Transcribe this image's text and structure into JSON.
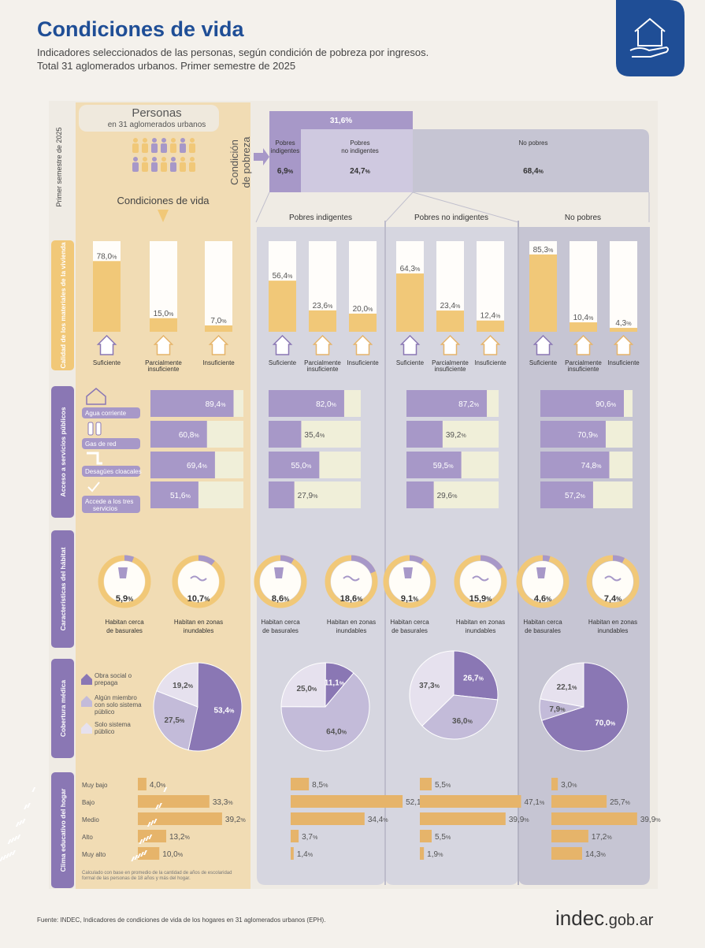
{
  "header": {
    "title": "Condiciones de vida",
    "subtitle_1": "Indicadores seleccionados de las personas, según condición de pobreza por ingresos.",
    "subtitle_2": "Total 31 aglomerados urbanos. Primer semestre de 2025"
  },
  "intro": {
    "persons_title": "Personas",
    "persons_sub": "en 31 aglomerados urbanos",
    "semester_label": "Primer semestre de 2025",
    "conditions_label": "Condiciones de vida",
    "condition_label_1": "Condición",
    "condition_label_2": "de pobreza",
    "poverty_total": "31,6%",
    "groups": [
      {
        "label_1": "Pobres",
        "label_2": "indigentes",
        "value": "6,9",
        "unit": "%"
      },
      {
        "label_1": "Pobres",
        "label_2": "no indigentes",
        "value": "24,7",
        "unit": "%"
      },
      {
        "label_1": "No pobres",
        "label_2": "",
        "value": "68,4",
        "unit": "%"
      }
    ]
  },
  "columns": {
    "total": "",
    "indigent": "Pobres indigentes",
    "nonindigent": "Pobres no indigentes",
    "nonpoor": "No pobres"
  },
  "sections": {
    "vivienda": "Calidad de los materiales de la vivienda",
    "servicios": "Acceso a servicios públicos",
    "habitat": "Características del hábitat",
    "cobertura": "Cobertura médica",
    "clima": "Clima educativo del hogar"
  },
  "vivienda_labels": [
    "Suficiente",
    "Parcialmente",
    "insuficiente",
    "Insuficiente"
  ],
  "servicios_labels": [
    "Agua corriente",
    "Gas de red",
    "Desagües cloacales",
    "Accede a los tres",
    "servicios"
  ],
  "habitat_labels": {
    "basural_1": "Habitan cerca",
    "basural_2": "de basurales",
    "inund_1": "Habitan en zonas",
    "inund_2": "inundables"
  },
  "cobertura_labels": [
    "Obra social o prepaga",
    "Algún miembro con solo sistema público",
    "Solo sistema público"
  ],
  "clima_labels": [
    "Muy bajo",
    "Bajo",
    "Medio",
    "Alto",
    "Muy alto"
  ],
  "clima_note": "Calculado con base en promedio de la cantidad de años de escolaridad formal de las personas de 18 años y más del hogar.",
  "chart_data": {
    "vivienda": {
      "type": "bar",
      "categories": [
        "Suficiente",
        "Parcialmente insuficiente",
        "Insuficiente"
      ],
      "series": [
        {
          "group": "total",
          "values": [
            78.0,
            15.0,
            7.0
          ],
          "labels": [
            "78,0%",
            "15,0%",
            "7,0%"
          ]
        },
        {
          "group": "indigent",
          "values": [
            56.4,
            23.6,
            20.0
          ],
          "labels": [
            "56,4%",
            "23,6%",
            "20,0%"
          ]
        },
        {
          "group": "nonindigent",
          "values": [
            64.3,
            23.4,
            12.4
          ],
          "labels": [
            "64,3%",
            "23,4%",
            "12,4%"
          ]
        },
        {
          "group": "nonpoor",
          "values": [
            85.3,
            10.4,
            4.3
          ],
          "labels": [
            "85,3%",
            "10,4%",
            "4,3%"
          ]
        }
      ]
    },
    "servicios": {
      "type": "bar",
      "categories": [
        "Agua corriente",
        "Gas de red",
        "Desagües cloacales",
        "Accede a los tres servicios"
      ],
      "series": [
        {
          "group": "total",
          "values": [
            89.4,
            60.8,
            69.4,
            51.6
          ],
          "labels": [
            "89,4%",
            "60,8%",
            "69,4%",
            "51,6%"
          ]
        },
        {
          "group": "indigent",
          "values": [
            82.0,
            35.4,
            55.0,
            27.9
          ],
          "labels": [
            "82,0%",
            "35,4%",
            "55,0%",
            "27,9%"
          ]
        },
        {
          "group": "nonindigent",
          "values": [
            87.2,
            39.2,
            59.5,
            29.6
          ],
          "labels": [
            "87,2%",
            "39,2%",
            "59,5%",
            "29,6%"
          ]
        },
        {
          "group": "nonpoor",
          "values": [
            90.6,
            70.9,
            74.8,
            57.2
          ],
          "labels": [
            "90,6%",
            "70,9%",
            "74,8%",
            "57,2%"
          ]
        }
      ]
    },
    "habitat": {
      "type": "pie",
      "categories": [
        "Habitan cerca de basurales",
        "Habitan en zonas inundables"
      ],
      "series": [
        {
          "group": "total",
          "values": [
            5.9,
            10.7
          ],
          "labels": [
            "5,9%",
            "10,7%"
          ]
        },
        {
          "group": "indigent",
          "values": [
            8.6,
            18.6
          ],
          "labels": [
            "8,6%",
            "18,6%"
          ]
        },
        {
          "group": "nonindigent",
          "values": [
            9.1,
            15.9
          ],
          "labels": [
            "9,1%",
            "15,9%"
          ]
        },
        {
          "group": "nonpoor",
          "values": [
            4.6,
            7.4
          ],
          "labels": [
            "4,6%",
            "7,4%"
          ]
        }
      ]
    },
    "cobertura": {
      "type": "pie",
      "categories": [
        "Obra social o prepaga",
        "Algún miembro con solo sistema público",
        "Solo sistema público"
      ],
      "series": [
        {
          "group": "total",
          "values": [
            53.4,
            27.5,
            19.2
          ],
          "labels": [
            "53,4%",
            "27,5%",
            "19,2%"
          ]
        },
        {
          "group": "indigent",
          "values": [
            11.1,
            64.0,
            25.0
          ],
          "labels": [
            "11,1%",
            "64,0%",
            "25,0%"
          ]
        },
        {
          "group": "nonindigent",
          "values": [
            26.7,
            36.0,
            37.3
          ],
          "labels": [
            "26,7%",
            "36,0%",
            "37,3%"
          ]
        },
        {
          "group": "nonpoor",
          "values": [
            70.0,
            7.9,
            22.1
          ],
          "labels": [
            "70,0%",
            "7,9%",
            "22,1%"
          ]
        }
      ]
    },
    "clima": {
      "type": "bar",
      "categories": [
        "Muy bajo",
        "Bajo",
        "Medio",
        "Alto",
        "Muy alto"
      ],
      "series": [
        {
          "group": "total",
          "values": [
            4.0,
            33.3,
            39.2,
            13.2,
            10.0
          ],
          "labels": [
            "4,0%",
            "33,3%",
            "39,2%",
            "13,2%",
            "10,0%"
          ]
        },
        {
          "group": "indigent",
          "values": [
            8.5,
            52.1,
            34.4,
            3.7,
            1.4
          ],
          "labels": [
            "8,5%",
            "52,1%",
            "34,4%",
            "3,7%",
            "1,4%"
          ]
        },
        {
          "group": "nonindigent",
          "values": [
            5.5,
            47.1,
            39.9,
            5.5,
            1.9
          ],
          "labels": [
            "5,5%",
            "47,1%",
            "39,9%",
            "5,5%",
            "1,9%"
          ]
        },
        {
          "group": "nonpoor",
          "values": [
            3.0,
            25.7,
            39.9,
            17.2,
            14.3
          ],
          "labels": [
            "3,0%",
            "25,7%",
            "39,9%",
            "17,2%",
            "14,3%"
          ]
        }
      ]
    }
  },
  "colors": {
    "bg": "#f4f1ec",
    "tan": "#f1dcb4",
    "gold": "#f1c878",
    "purple": "#a798c8",
    "purple_dark": "#8a77b4",
    "lavender": "#cfc9e0",
    "grey_col": "#d6d6e0",
    "grey_col_dark": "#c6c5d3",
    "navy": "#1f4e96",
    "clima_bar": "#e6b46a",
    "cream_track": "#f0efd9"
  },
  "icons": {
    "logo": "house-in-hand-icon",
    "house": "house-icon",
    "water": "faucet-icon",
    "gas": "gas-cylinder-icon",
    "sewer": "pipe-icon",
    "check": "check-icon",
    "trash": "trash-icon",
    "flood": "flood-wave-icon",
    "people": "person-icon",
    "books": "book-stack-icon"
  },
  "footer": {
    "source": "Fuente: INDEC, Indicadores de condiciones de vida de los hogares en 31 aglomerados urbanos (EPH).",
    "brand": "indec",
    "brand_suffix": ".gob.ar"
  }
}
